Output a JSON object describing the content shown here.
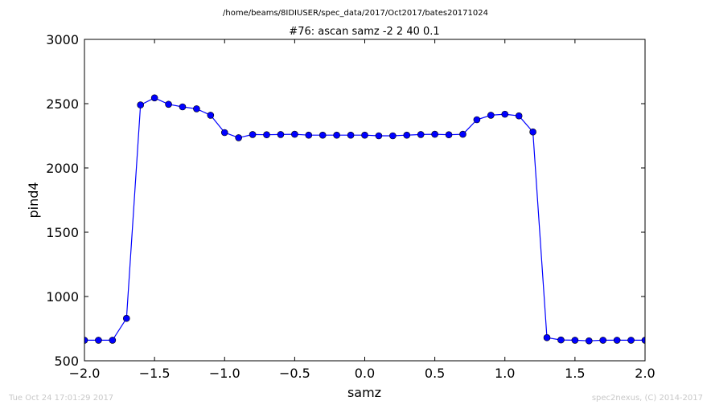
{
  "header": {
    "path": "/home/beams/8IDIUSER/spec_data/2017/Oct2017/bates20171024",
    "scan_title": "#76: ascan  samz -2 2  40 0.1"
  },
  "footer": {
    "timestamp": "Tue Oct 24 17:01:29 2017",
    "credit": "spec2nexus, (C) 2014-2017"
  },
  "colors": {
    "series": "#0000ff",
    "axis": "#000000",
    "footer_text": "#c8c8c8"
  },
  "chart_data": {
    "type": "line",
    "title": "#76: ascan  samz -2 2  40 0.1",
    "xlabel": "samz",
    "ylabel": "pind4",
    "xlim": [
      -2.0,
      2.0
    ],
    "ylim": [
      500,
      3000
    ],
    "xticks": [
      -2.0,
      -1.5,
      -1.0,
      -0.5,
      0.0,
      0.5,
      1.0,
      1.5,
      2.0
    ],
    "xtick_labels": [
      "−2.0",
      "−1.5",
      "−1.0",
      "−0.5",
      "0.0",
      "0.5",
      "1.0",
      "1.5",
      "2.0"
    ],
    "yticks": [
      500,
      1000,
      1500,
      2000,
      2500,
      3000
    ],
    "ytick_labels": [
      "500",
      "1000",
      "1500",
      "2000",
      "2500",
      "3000"
    ],
    "grid": false,
    "marker": "circle",
    "series": [
      {
        "x": [
          -2.0,
          -1.9,
          -1.8,
          -1.7,
          -1.6,
          -1.5,
          -1.4,
          -1.3,
          -1.2,
          -1.1,
          -1.0,
          -0.9,
          -0.8,
          -0.7,
          -0.6,
          -0.5,
          -0.4,
          -0.3,
          -0.2,
          -0.1,
          0.0,
          0.1,
          0.2,
          0.3,
          0.4,
          0.5,
          0.6,
          0.7,
          0.8,
          0.9,
          1.0,
          1.1,
          1.2,
          1.3,
          1.4,
          1.5,
          1.6,
          1.7,
          1.8,
          1.9,
          2.0
        ],
        "y": [
          660,
          660,
          660,
          830,
          2490,
          2545,
          2495,
          2475,
          2460,
          2410,
          2275,
          2235,
          2260,
          2258,
          2260,
          2262,
          2255,
          2255,
          2255,
          2255,
          2255,
          2250,
          2250,
          2255,
          2260,
          2262,
          2258,
          2262,
          2375,
          2410,
          2418,
          2405,
          2280,
          680,
          662,
          660,
          655,
          660,
          660,
          660,
          660
        ]
      }
    ]
  }
}
